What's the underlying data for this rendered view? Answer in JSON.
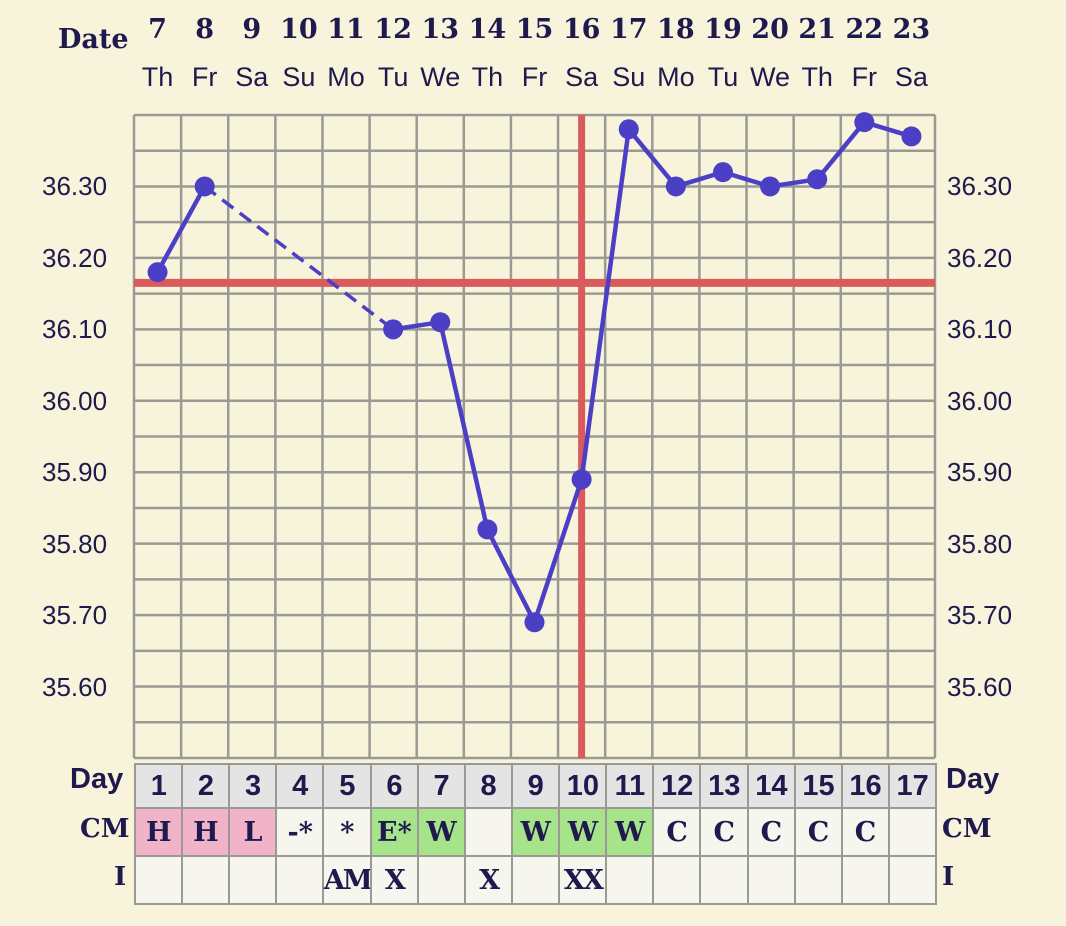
{
  "chart_data": {
    "type": "line",
    "header_label": "Date",
    "dates": [
      "7",
      "8",
      "9",
      "10",
      "11",
      "12",
      "13",
      "14",
      "15",
      "16",
      "17",
      "18",
      "19",
      "20",
      "21",
      "22",
      "23"
    ],
    "weekdays": [
      "Th",
      "Fr",
      "Sa",
      "Su",
      "Mo",
      "Tu",
      "We",
      "Th",
      "Fr",
      "Sa",
      "Su",
      "Mo",
      "Tu",
      "We",
      "Th",
      "Fr",
      "Sa"
    ],
    "y_ticks": [
      "36.30",
      "36.20",
      "36.10",
      "36.00",
      "35.90",
      "35.80",
      "35.70",
      "35.60"
    ],
    "ylim": [
      35.5,
      36.4
    ],
    "grid_step": 0.05,
    "grid": true,
    "series": [
      {
        "values": [
          36.18,
          36.3,
          null,
          null,
          null,
          36.1,
          36.11,
          35.82,
          35.69,
          35.89,
          36.38,
          36.3,
          36.32,
          36.3,
          36.31,
          36.39,
          36.37
        ],
        "color": "#4b3fc6",
        "gap_style": "dashed"
      }
    ],
    "coverline": 36.165,
    "coverline_color": "#d95b5b",
    "ovulation_day": 10,
    "rows": {
      "day_label": "Day",
      "days": [
        "1",
        "2",
        "3",
        "4",
        "5",
        "6",
        "7",
        "8",
        "9",
        "10",
        "11",
        "12",
        "13",
        "14",
        "15",
        "16",
        "17"
      ],
      "cm_label": "CM",
      "cm": [
        "H",
        "H",
        "L",
        "-*",
        "*",
        "E*",
        "W",
        "",
        "W",
        "W",
        "W",
        "C",
        "C",
        "C",
        "C",
        "C",
        ""
      ],
      "cm_colors": [
        "pink",
        "pink",
        "pink",
        "",
        "",
        "green",
        "green",
        "",
        "green",
        "green",
        "green",
        "",
        "",
        "",
        "",
        "",
        ""
      ],
      "i_label": "I",
      "i": [
        "",
        "",
        "",
        "",
        "AM",
        "X",
        "",
        "X",
        "",
        "XX",
        "",
        "",
        "",
        "",
        "",
        "",
        ""
      ]
    },
    "colors": {
      "pink": "#f0b3c8",
      "green": "#a6e38a",
      "cell": "#f6f6ee",
      "day_row": "#e4e4e4",
      "grid": "#9a9a94",
      "text": "#1f1a4d"
    }
  }
}
